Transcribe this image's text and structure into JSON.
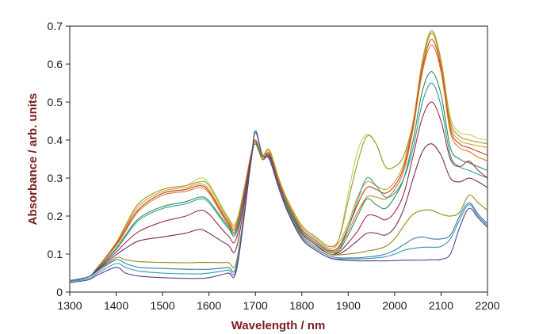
{
  "chart_data": {
    "type": "line",
    "title": "",
    "xlabel": "Wavelength / nm",
    "ylabel": "Absorbance / arb. units",
    "xlim": [
      1300,
      2200
    ],
    "ylim": [
      0,
      0.7
    ],
    "xticks": [
      "1300",
      "1400",
      "1500",
      "1600",
      "1700",
      "1800",
      "1900",
      "2000",
      "2100",
      "2200"
    ],
    "yticks": [
      "0",
      "0.1",
      "0.2",
      "0.3",
      "0.4",
      "0.5",
      "0.6",
      "0.7"
    ],
    "grid": false,
    "legend": "none",
    "series": [
      {
        "color": "#c8c85a",
        "x": [
          1300,
          1340,
          1360,
          1400,
          1420,
          1450,
          1500,
          1550,
          1580,
          1600,
          1640,
          1660,
          1690,
          1700,
          1715,
          1730,
          1750,
          1770,
          1800,
          1830,
          1860,
          1880,
          1900,
          1920,
          1940,
          1960,
          1980,
          2000,
          2020,
          2040,
          2060,
          2080,
          2100,
          2120,
          2140,
          2160,
          2180,
          2200
        ],
        "y": [
          0.03,
          0.04,
          0.065,
          0.13,
          0.175,
          0.235,
          0.27,
          0.28,
          0.3,
          0.285,
          0.2,
          0.19,
          0.36,
          0.4,
          0.36,
          0.375,
          0.3,
          0.24,
          0.175,
          0.145,
          0.12,
          0.14,
          0.26,
          0.37,
          0.415,
          0.39,
          0.33,
          0.33,
          0.36,
          0.45,
          0.61,
          0.69,
          0.61,
          0.46,
          0.42,
          0.415,
          0.405,
          0.4
        ]
      },
      {
        "color": "#9a9a2a",
        "x": [
          1300,
          1340,
          1360,
          1400,
          1420,
          1450,
          1500,
          1550,
          1580,
          1600,
          1640,
          1660,
          1690,
          1700,
          1715,
          1730,
          1750,
          1770,
          1800,
          1830,
          1860,
          1880,
          1900,
          1920,
          1940,
          1960,
          1980,
          2000,
          2020,
          2040,
          2060,
          2080,
          2100,
          2120,
          2140,
          2160,
          2180,
          2200
        ],
        "y": [
          0.03,
          0.04,
          0.065,
          0.13,
          0.175,
          0.235,
          0.27,
          0.28,
          0.29,
          0.28,
          0.195,
          0.185,
          0.36,
          0.4,
          0.36,
          0.375,
          0.3,
          0.24,
          0.175,
          0.145,
          0.12,
          0.14,
          0.24,
          0.34,
          0.41,
          0.39,
          0.33,
          0.33,
          0.36,
          0.45,
          0.61,
          0.685,
          0.61,
          0.45,
          0.41,
          0.4,
          0.395,
          0.39
        ]
      },
      {
        "color": "#d9a020",
        "x": [
          1300,
          1340,
          1360,
          1400,
          1420,
          1450,
          1500,
          1550,
          1580,
          1600,
          1640,
          1660,
          1690,
          1700,
          1715,
          1730,
          1750,
          1770,
          1800,
          1830,
          1860,
          1880,
          1900,
          1920,
          1940,
          1960,
          1980,
          2000,
          2020,
          2040,
          2060,
          2080,
          2100,
          2120,
          2140,
          2160,
          2180,
          2200
        ],
        "y": [
          0.03,
          0.04,
          0.065,
          0.128,
          0.17,
          0.228,
          0.265,
          0.275,
          0.285,
          0.27,
          0.19,
          0.18,
          0.36,
          0.4,
          0.355,
          0.37,
          0.295,
          0.235,
          0.17,
          0.14,
          0.115,
          0.13,
          0.18,
          0.25,
          0.29,
          0.28,
          0.27,
          0.29,
          0.34,
          0.45,
          0.6,
          0.68,
          0.6,
          0.44,
          0.4,
          0.39,
          0.385,
          0.38
        ]
      },
      {
        "color": "#c0392b",
        "x": [
          1300,
          1340,
          1360,
          1400,
          1420,
          1450,
          1500,
          1550,
          1580,
          1600,
          1640,
          1660,
          1690,
          1700,
          1715,
          1730,
          1750,
          1770,
          1800,
          1830,
          1860,
          1880,
          1900,
          1920,
          1940,
          1960,
          1980,
          2000,
          2020,
          2040,
          2060,
          2080,
          2100,
          2120,
          2140,
          2160,
          2180,
          2200
        ],
        "y": [
          0.03,
          0.04,
          0.065,
          0.125,
          0.165,
          0.22,
          0.26,
          0.27,
          0.28,
          0.265,
          0.185,
          0.175,
          0.355,
          0.395,
          0.35,
          0.365,
          0.29,
          0.23,
          0.165,
          0.135,
          0.11,
          0.12,
          0.17,
          0.23,
          0.275,
          0.27,
          0.26,
          0.28,
          0.33,
          0.44,
          0.59,
          0.665,
          0.59,
          0.43,
          0.39,
          0.38,
          0.37,
          0.36
        ]
      },
      {
        "color": "#e07a2a",
        "x": [
          1300,
          1340,
          1360,
          1400,
          1420,
          1450,
          1500,
          1550,
          1580,
          1600,
          1640,
          1660,
          1690,
          1700,
          1715,
          1730,
          1750,
          1770,
          1800,
          1830,
          1860,
          1880,
          1900,
          1920,
          1940,
          1960,
          1980,
          2000,
          2020,
          2040,
          2060,
          2080,
          2100,
          2120,
          2140,
          2160,
          2180,
          2200
        ],
        "y": [
          0.03,
          0.04,
          0.065,
          0.122,
          0.16,
          0.215,
          0.255,
          0.265,
          0.275,
          0.26,
          0.18,
          0.17,
          0.35,
          0.39,
          0.35,
          0.36,
          0.285,
          0.225,
          0.16,
          0.13,
          0.107,
          0.115,
          0.16,
          0.21,
          0.25,
          0.25,
          0.245,
          0.27,
          0.32,
          0.43,
          0.58,
          0.65,
          0.58,
          0.42,
          0.38,
          0.37,
          0.355,
          0.345
        ]
      },
      {
        "color": "#2e8b57",
        "x": [
          1300,
          1340,
          1360,
          1400,
          1420,
          1450,
          1500,
          1550,
          1580,
          1600,
          1640,
          1660,
          1690,
          1700,
          1715,
          1730,
          1750,
          1770,
          1800,
          1830,
          1860,
          1880,
          1900,
          1920,
          1940,
          1960,
          1980,
          2000,
          2020,
          2040,
          2060,
          2080,
          2100,
          2120,
          2140,
          2160,
          2180,
          2200
        ],
        "y": [
          0.03,
          0.04,
          0.063,
          0.115,
          0.15,
          0.195,
          0.225,
          0.238,
          0.25,
          0.24,
          0.175,
          0.165,
          0.35,
          0.39,
          0.35,
          0.36,
          0.285,
          0.225,
          0.16,
          0.13,
          0.105,
          0.11,
          0.15,
          0.2,
          0.245,
          0.23,
          0.22,
          0.25,
          0.3,
          0.4,
          0.53,
          0.58,
          0.52,
          0.38,
          0.35,
          0.34,
          0.33,
          0.32
        ]
      },
      {
        "color": "#2a9d9d",
        "x": [
          1300,
          1340,
          1360,
          1400,
          1420,
          1450,
          1500,
          1550,
          1580,
          1600,
          1640,
          1660,
          1690,
          1700,
          1715,
          1730,
          1750,
          1770,
          1800,
          1830,
          1860,
          1880,
          1900,
          1920,
          1940,
          1960,
          1980,
          2000,
          2020,
          2040,
          2060,
          2080,
          2100,
          2120,
          2140,
          2160,
          2180,
          2200
        ],
        "y": [
          0.03,
          0.04,
          0.062,
          0.112,
          0.145,
          0.19,
          0.22,
          0.232,
          0.245,
          0.235,
          0.17,
          0.16,
          0.35,
          0.4,
          0.35,
          0.36,
          0.285,
          0.225,
          0.16,
          0.13,
          0.105,
          0.11,
          0.17,
          0.24,
          0.3,
          0.28,
          0.25,
          0.26,
          0.3,
          0.38,
          0.5,
          0.55,
          0.49,
          0.36,
          0.33,
          0.32,
          0.31,
          0.3
        ]
      },
      {
        "color": "#a3273f",
        "x": [
          1300,
          1340,
          1360,
          1400,
          1420,
          1450,
          1500,
          1550,
          1580,
          1600,
          1640,
          1660,
          1690,
          1700,
          1715,
          1730,
          1750,
          1770,
          1800,
          1830,
          1860,
          1880,
          1900,
          1920,
          1940,
          1960,
          1980,
          2000,
          2020,
          2040,
          2060,
          2080,
          2100,
          2120,
          2140,
          2160,
          2180,
          2200
        ],
        "y": [
          0.03,
          0.04,
          0.06,
          0.105,
          0.13,
          0.16,
          0.185,
          0.2,
          0.215,
          0.205,
          0.15,
          0.145,
          0.35,
          0.4,
          0.35,
          0.36,
          0.285,
          0.22,
          0.155,
          0.125,
          0.1,
          0.105,
          0.13,
          0.16,
          0.2,
          0.2,
          0.19,
          0.21,
          0.26,
          0.36,
          0.46,
          0.5,
          0.45,
          0.35,
          0.33,
          0.345,
          0.32,
          0.3
        ]
      },
      {
        "color": "#7a2a55",
        "x": [
          1300,
          1340,
          1360,
          1400,
          1420,
          1450,
          1500,
          1550,
          1580,
          1600,
          1640,
          1660,
          1690,
          1700,
          1715,
          1730,
          1750,
          1770,
          1800,
          1830,
          1860,
          1880,
          1900,
          1920,
          1940,
          1960,
          1980,
          2000,
          2020,
          2040,
          2060,
          2080,
          2100,
          2120,
          2140,
          2160,
          2180,
          2200
        ],
        "y": [
          0.03,
          0.04,
          0.058,
          0.098,
          0.115,
          0.135,
          0.145,
          0.155,
          0.165,
          0.155,
          0.125,
          0.12,
          0.345,
          0.4,
          0.35,
          0.355,
          0.28,
          0.22,
          0.155,
          0.125,
          0.1,
          0.1,
          0.115,
          0.135,
          0.155,
          0.155,
          0.15,
          0.17,
          0.22,
          0.3,
          0.37,
          0.39,
          0.36,
          0.3,
          0.29,
          0.3,
          0.29,
          0.275
        ]
      },
      {
        "color": "#8c8c1a",
        "x": [
          1300,
          1340,
          1360,
          1400,
          1420,
          1450,
          1500,
          1550,
          1580,
          1600,
          1640,
          1660,
          1690,
          1700,
          1715,
          1730,
          1750,
          1770,
          1800,
          1830,
          1860,
          1880,
          1900,
          1920,
          1940,
          1960,
          1980,
          2000,
          2020,
          2040,
          2060,
          2080,
          2100,
          2120,
          2140,
          2160,
          2180,
          2200
        ],
        "y": [
          0.03,
          0.04,
          0.055,
          0.09,
          0.085,
          0.08,
          0.078,
          0.077,
          0.078,
          0.078,
          0.078,
          0.085,
          0.34,
          0.4,
          0.35,
          0.355,
          0.28,
          0.22,
          0.15,
          0.12,
          0.1,
          0.098,
          0.1,
          0.103,
          0.108,
          0.112,
          0.12,
          0.14,
          0.175,
          0.205,
          0.215,
          0.215,
          0.205,
          0.2,
          0.21,
          0.255,
          0.235,
          0.215
        ]
      },
      {
        "color": "#3a7ca5",
        "x": [
          1300,
          1340,
          1360,
          1400,
          1420,
          1450,
          1500,
          1550,
          1580,
          1600,
          1640,
          1660,
          1690,
          1700,
          1715,
          1730,
          1750,
          1770,
          1800,
          1830,
          1860,
          1880,
          1900,
          1920,
          1940,
          1960,
          1980,
          2000,
          2020,
          2040,
          2060,
          2080,
          2100,
          2120,
          2140,
          2160,
          2180,
          2200
        ],
        "y": [
          0.03,
          0.04,
          0.055,
          0.085,
          0.075,
          0.065,
          0.062,
          0.06,
          0.06,
          0.06,
          0.065,
          0.075,
          0.34,
          0.425,
          0.36,
          0.355,
          0.28,
          0.215,
          0.145,
          0.115,
          0.095,
          0.09,
          0.09,
          0.09,
          0.092,
          0.095,
          0.1,
          0.11,
          0.125,
          0.14,
          0.145,
          0.14,
          0.14,
          0.15,
          0.2,
          0.235,
          0.205,
          0.18
        ]
      },
      {
        "color": "#2c9ab0",
        "x": [
          1300,
          1340,
          1360,
          1400,
          1420,
          1450,
          1500,
          1550,
          1580,
          1600,
          1640,
          1660,
          1690,
          1700,
          1715,
          1730,
          1750,
          1770,
          1800,
          1830,
          1860,
          1880,
          1900,
          1920,
          1940,
          1960,
          1980,
          2000,
          2020,
          2040,
          2060,
          2080,
          2100,
          2120,
          2140,
          2160,
          2180,
          2200
        ],
        "y": [
          0.028,
          0.035,
          0.05,
          0.075,
          0.065,
          0.055,
          0.05,
          0.048,
          0.048,
          0.05,
          0.058,
          0.068,
          0.34,
          0.425,
          0.36,
          0.35,
          0.275,
          0.21,
          0.14,
          0.11,
          0.09,
          0.087,
          0.087,
          0.087,
          0.088,
          0.09,
          0.093,
          0.1,
          0.11,
          0.115,
          0.118,
          0.118,
          0.12,
          0.14,
          0.19,
          0.23,
          0.2,
          0.175
        ]
      },
      {
        "color": "#5b3a8c",
        "x": [
          1300,
          1340,
          1360,
          1400,
          1420,
          1450,
          1500,
          1550,
          1580,
          1600,
          1640,
          1660,
          1690,
          1700,
          1715,
          1730,
          1750,
          1770,
          1800,
          1830,
          1860,
          1880,
          1900,
          1920,
          1940,
          1960,
          1980,
          2000,
          2020,
          2040,
          2060,
          2080,
          2100,
          2120,
          2140,
          2160,
          2180,
          2200
        ],
        "y": [
          0.025,
          0.032,
          0.045,
          0.065,
          0.05,
          0.042,
          0.038,
          0.036,
          0.036,
          0.038,
          0.05,
          0.062,
          0.34,
          0.42,
          0.36,
          0.35,
          0.275,
          0.21,
          0.14,
          0.11,
          0.09,
          0.085,
          0.083,
          0.082,
          0.082,
          0.082,
          0.082,
          0.083,
          0.084,
          0.084,
          0.084,
          0.085,
          0.086,
          0.1,
          0.17,
          0.22,
          0.195,
          0.17
        ]
      }
    ]
  }
}
